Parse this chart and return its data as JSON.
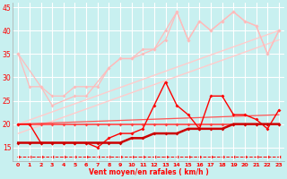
{
  "background_color": "#c8f0f0",
  "grid_color": "#ffffff",
  "xlabel": "Vent moyen/en rafales ( km/h )",
  "xlabel_color": "#ff0000",
  "xlim": [
    -0.5,
    23.5
  ],
  "ylim": [
    12,
    46
  ],
  "yticks": [
    15,
    20,
    25,
    30,
    35,
    40,
    45
  ],
  "xticks": [
    0,
    1,
    2,
    3,
    4,
    5,
    6,
    7,
    8,
    9,
    10,
    11,
    12,
    13,
    14,
    15,
    16,
    17,
    18,
    19,
    20,
    21,
    22,
    23
  ],
  "series": [
    {
      "x": [
        0,
        2,
        3,
        5,
        6,
        8,
        9,
        10,
        11,
        12,
        13,
        14,
        15,
        16,
        17,
        18,
        19,
        20,
        21,
        22,
        23
      ],
      "y": [
        35,
        28,
        24,
        26,
        26,
        32,
        34,
        34,
        35,
        36,
        38,
        44,
        38,
        42,
        40,
        42,
        44,
        42,
        41,
        35,
        40
      ],
      "color": "#ffbbbb",
      "marker": "D",
      "markersize": 2,
      "linewidth": 0.9,
      "linestyle": "-",
      "zorder": 3
    },
    {
      "x": [
        0,
        1,
        2,
        3,
        4,
        5,
        6,
        7,
        8,
        9,
        10,
        11,
        12,
        13,
        14,
        15,
        16,
        17,
        18,
        19,
        20,
        21,
        22,
        23
      ],
      "y": [
        35,
        28,
        28,
        26,
        26,
        28,
        28,
        28,
        32,
        34,
        34,
        36,
        36,
        40,
        44,
        38,
        42,
        40,
        42,
        44,
        42,
        41,
        35,
        40
      ],
      "color": "#ffbbbb",
      "marker": "D",
      "markersize": 2,
      "linewidth": 0.9,
      "linestyle": "-",
      "zorder": 3
    },
    {
      "x": [
        0,
        23
      ],
      "y": [
        20,
        40
      ],
      "color": "#ffcccc",
      "marker": "none",
      "markersize": 0,
      "linewidth": 1.0,
      "linestyle": "-",
      "zorder": 2
    },
    {
      "x": [
        0,
        23
      ],
      "y": [
        18,
        38
      ],
      "color": "#ffcccc",
      "marker": "none",
      "markersize": 0,
      "linewidth": 1.0,
      "linestyle": "-",
      "zorder": 2
    },
    {
      "x": [
        0,
        23
      ],
      "y": [
        20,
        22
      ],
      "color": "#ff5555",
      "marker": "none",
      "markersize": 0,
      "linewidth": 0.9,
      "linestyle": "-",
      "zorder": 4
    },
    {
      "x": [
        0,
        1,
        2,
        3,
        4,
        5,
        6,
        7,
        8,
        9,
        10,
        11,
        12,
        13,
        14,
        15,
        16,
        17,
        18,
        19,
        20,
        21,
        22,
        23
      ],
      "y": [
        20,
        20,
        20,
        20,
        20,
        20,
        20,
        20,
        20,
        20,
        20,
        20,
        20,
        20,
        20,
        20,
        20,
        20,
        20,
        20,
        20,
        20,
        20,
        20
      ],
      "color": "#ff4444",
      "marker": "D",
      "markersize": 2,
      "linewidth": 1.2,
      "linestyle": "-",
      "zorder": 4
    },
    {
      "x": [
        0,
        1,
        2,
        3,
        4,
        5,
        6,
        7,
        8,
        9,
        10,
        11,
        12,
        13,
        14,
        15,
        16,
        17,
        18,
        19,
        20,
        21,
        22,
        23
      ],
      "y": [
        20,
        20,
        16,
        16,
        16,
        16,
        16,
        15,
        17,
        18,
        18,
        19,
        24,
        29,
        24,
        22,
        19,
        26,
        26,
        22,
        22,
        21,
        19,
        23
      ],
      "color": "#ff0000",
      "marker": "D",
      "markersize": 2,
      "linewidth": 1.0,
      "linestyle": "-",
      "zorder": 5
    },
    {
      "x": [
        0,
        1,
        2,
        3,
        4,
        5,
        6,
        7,
        8,
        9,
        10,
        11,
        12,
        13,
        14,
        15,
        16,
        17,
        18,
        19,
        20,
        21,
        22,
        23
      ],
      "y": [
        16,
        16,
        16,
        16,
        16,
        16,
        16,
        16,
        16,
        16,
        17,
        17,
        18,
        18,
        18,
        19,
        19,
        19,
        19,
        20,
        20,
        20,
        20,
        20
      ],
      "color": "#cc0000",
      "marker": "D",
      "markersize": 2,
      "linewidth": 1.8,
      "linestyle": "-",
      "zorder": 6
    },
    {
      "x": [
        0,
        1,
        2,
        3,
        4,
        5,
        6,
        7,
        8,
        9,
        10,
        11,
        12,
        13,
        14,
        15,
        16,
        17,
        18,
        19,
        20,
        21,
        22,
        23
      ],
      "y": [
        13,
        13,
        13,
        13,
        13,
        13,
        13,
        13,
        13,
        13,
        13,
        13,
        13,
        13,
        13,
        13,
        13,
        13,
        13,
        13,
        13,
        13,
        13,
        13
      ],
      "color": "#ff0000",
      "marker": "<",
      "markersize": 2.5,
      "linewidth": 0.7,
      "linestyle": "--",
      "zorder": 1
    }
  ]
}
